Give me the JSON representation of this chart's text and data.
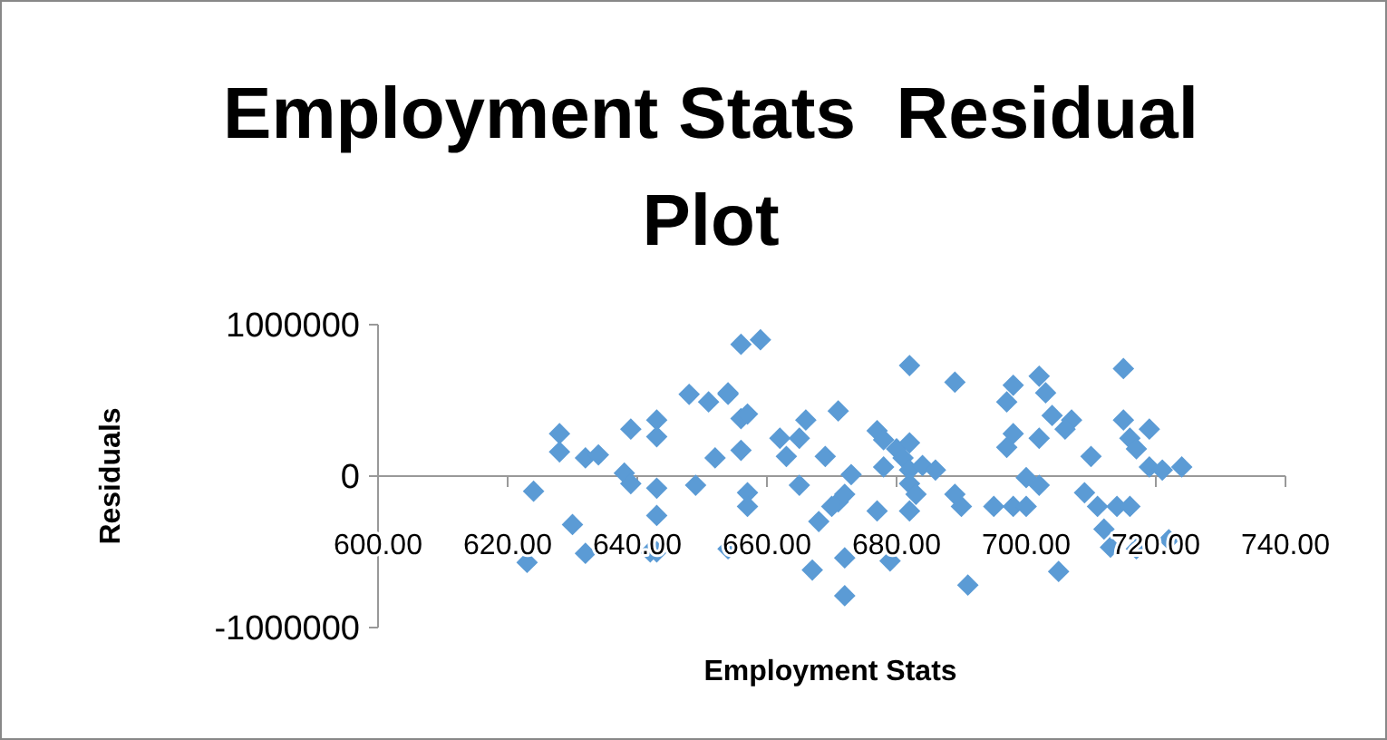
{
  "chart_data": {
    "type": "scatter",
    "title": "Employment Stats  Residual Plot",
    "xlabel": "Employment Stats",
    "ylabel": "Residuals",
    "xlim": [
      600,
      740
    ],
    "xticks": [
      {
        "value": 600,
        "label": "600.00"
      },
      {
        "value": 620,
        "label": "620.00"
      },
      {
        "value": 640,
        "label": "640.00"
      },
      {
        "value": 660,
        "label": "660.00"
      },
      {
        "value": 680,
        "label": "680.00"
      },
      {
        "value": 700,
        "label": "700.00"
      },
      {
        "value": 720,
        "label": "720.00"
      },
      {
        "value": 740,
        "label": "740.00"
      }
    ],
    "ylim": [
      -1000000,
      1000000
    ],
    "yticks": [
      -1000000,
      0,
      1000000
    ],
    "grid": false,
    "marker": "diamond",
    "series": [
      {
        "color": "#5b9bd5",
        "x": [
          624,
          623,
          628,
          628,
          630,
          632,
          632,
          634,
          638,
          639,
          639,
          643,
          643,
          643,
          643,
          642,
          643,
          648,
          651,
          654,
          649,
          652,
          654,
          656,
          656,
          657,
          656,
          659,
          657,
          657,
          654,
          662,
          663,
          665,
          666,
          669,
          671,
          673,
          665,
          671,
          670,
          672,
          668,
          667,
          672,
          672,
          677,
          678,
          680,
          682,
          678,
          681,
          682,
          684,
          686,
          682,
          683,
          682,
          677,
          679,
          682,
          689,
          689,
          690,
          691,
          695,
          698,
          700,
          697,
          698,
          702,
          703,
          698,
          702,
          697,
          700,
          702,
          704,
          707,
          706,
          710,
          709,
          711,
          714,
          716,
          712,
          713,
          717,
          705,
          715,
          715,
          716,
          717,
          719,
          719,
          721,
          724,
          722
        ],
        "values": [
          -100000,
          -570000,
          280000,
          160000,
          -320000,
          -510000,
          120000,
          140000,
          20000,
          -50000,
          310000,
          370000,
          260000,
          -80000,
          -260000,
          -500000,
          -500000,
          540000,
          490000,
          540000,
          -60000,
          120000,
          -480000,
          170000,
          380000,
          410000,
          870000,
          900000,
          -110000,
          -200000,
          550000,
          250000,
          130000,
          250000,
          370000,
          130000,
          430000,
          10000,
          -60000,
          -170000,
          -200000,
          -120000,
          -300000,
          -620000,
          -790000,
          -540000,
          300000,
          240000,
          180000,
          220000,
          60000,
          120000,
          40000,
          70000,
          40000,
          -50000,
          -120000,
          -230000,
          -230000,
          -560000,
          730000,
          620000,
          -120000,
          -200000,
          -720000,
          -200000,
          -200000,
          -200000,
          490000,
          600000,
          660000,
          550000,
          280000,
          250000,
          190000,
          -10000,
          -60000,
          400000,
          370000,
          310000,
          130000,
          -110000,
          -200000,
          -200000,
          -200000,
          -350000,
          -470000,
          -480000,
          -630000,
          710000,
          370000,
          250000,
          180000,
          310000,
          60000,
          40000,
          60000,
          -420000
        ]
      }
    ]
  }
}
